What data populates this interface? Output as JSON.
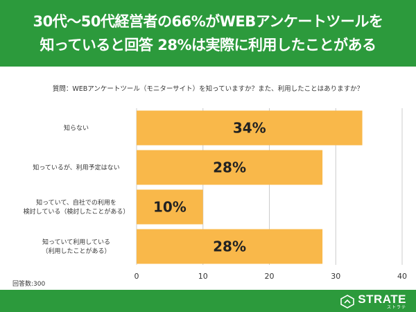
{
  "header": {
    "line1": "30代〜50代経営者の66%がWEBアンケートツールを",
    "line2": "知っていると回答 28%は実際に利用したことがある"
  },
  "question": "質問：WEBアンケートツール（モニターサイト）を知っていますか？また、利用したことはありますか？",
  "sample_note": "回答数:300",
  "brand": {
    "name": "STRATE",
    "sub": "ストラテ"
  },
  "colors": {
    "header_bg": "#2c9a3c",
    "bar": "#f9b84a",
    "gridline": "#cccccc"
  },
  "chart_data": {
    "type": "bar",
    "orientation": "horizontal",
    "categories": [
      [
        "知らない"
      ],
      [
        "知っているが、利用予定はない"
      ],
      [
        "知っていて、自社での利用を",
        "検討している（検討したことがある）"
      ],
      [
        "知っていて利用している",
        "（利用したことがある）"
      ]
    ],
    "values": [
      34,
      28,
      10,
      28
    ],
    "value_labels": [
      "34%",
      "28%",
      "10%",
      "28%"
    ],
    "xlim": [
      0,
      40
    ],
    "xticks": [
      0,
      10,
      20,
      30,
      40
    ],
    "grid": true
  }
}
